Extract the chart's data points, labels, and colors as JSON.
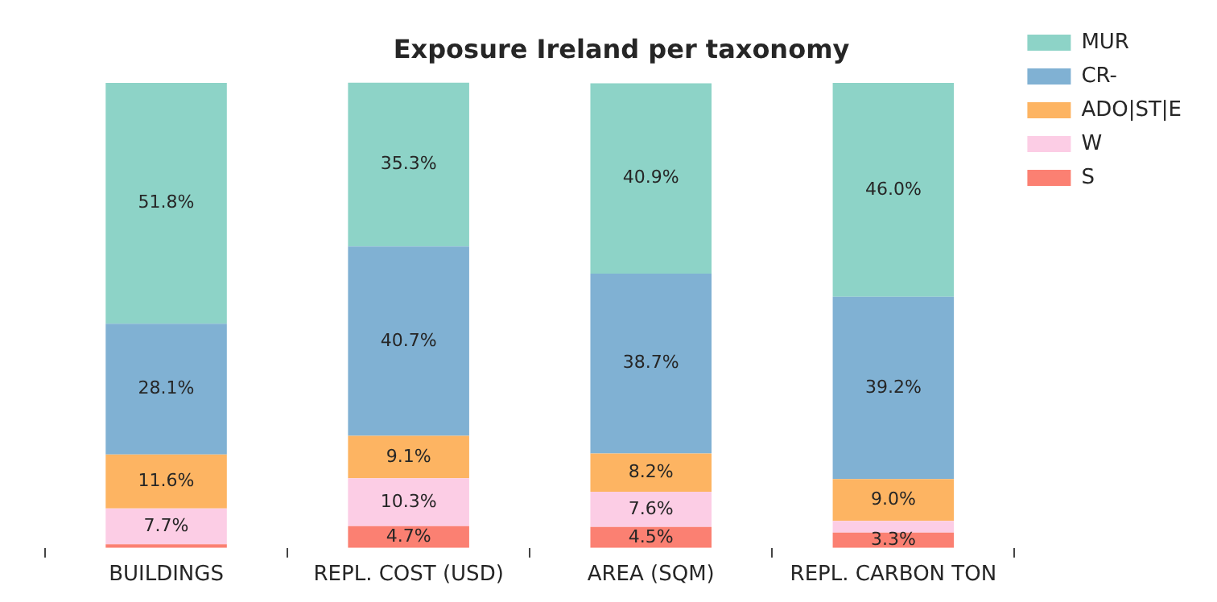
{
  "chart_data": {
    "type": "bar",
    "title": "Exposure Ireland per taxonomy",
    "stacked": true,
    "legend": "top right",
    "grid": false,
    "categories": [
      "BUILDINGS",
      "REPL. COST (USD)",
      "AREA (SQM)",
      "REPL. CARBON TON"
    ],
    "series": [
      {
        "name": "S",
        "color": "#fb8072",
        "values": [
          0.8,
          4.7,
          4.5,
          3.3
        ],
        "value_labels": [
          null,
          "4.7%",
          "4.5%",
          "3.3%"
        ]
      },
      {
        "name": "W",
        "color": "#fccde5",
        "values": [
          7.7,
          10.3,
          7.6,
          2.5
        ],
        "value_labels": [
          "7.7%",
          "10.3%",
          "7.6%",
          null
        ]
      },
      {
        "name": "ADO|ST|E",
        "color": "#fdb462",
        "values": [
          11.6,
          9.1,
          8.2,
          9.0
        ],
        "value_labels": [
          "11.6%",
          "9.1%",
          "8.2%",
          "9.0%"
        ]
      },
      {
        "name": "CR-",
        "color": "#80b1d3",
        "values": [
          28.1,
          40.7,
          38.7,
          39.2
        ],
        "value_labels": [
          "28.1%",
          "40.7%",
          "38.7%",
          "39.2%"
        ]
      },
      {
        "name": "MUR",
        "color": "#8dd3c7",
        "values": [
          51.8,
          35.3,
          40.9,
          46.0
        ],
        "value_labels": [
          "51.8%",
          "35.3%",
          "40.9%",
          "46.0%"
        ]
      }
    ]
  }
}
